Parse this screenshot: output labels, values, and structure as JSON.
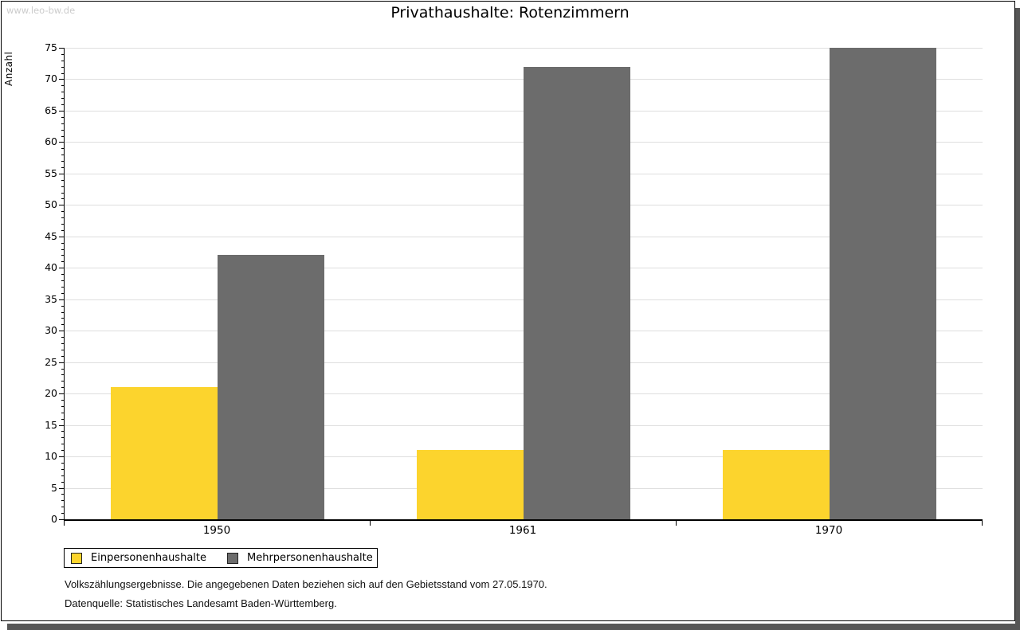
{
  "watermark": "www.leo-bw.de",
  "title": "Privathaushalte: Rotenzimmern",
  "footnotes": [
    "Volkszählungsergebnisse. Die angegebenen Daten beziehen sich auf den Gebietsstand vom 27.05.1970.",
    "Datenquelle: Statistisches Landesamt Baden-Württemberg."
  ],
  "colors": {
    "series_yellow": "#FCD42D",
    "series_gray": "#6C6C6C",
    "gridline": "#DEDEDE",
    "axis": "#000000",
    "frame_shadow": "#565656",
    "watermark": "#CCCCCC",
    "background": "#FFFFFF"
  },
  "chart_data": {
    "type": "bar",
    "title": "Privathaushalte: Rotenzimmern",
    "categories": [
      "1950",
      "1961",
      "1970"
    ],
    "series": [
      {
        "name": "Einpersonenhaushalte",
        "color": "#FCD42D",
        "values": [
          21,
          11,
          11
        ]
      },
      {
        "name": "Mehrpersonenhaushalte",
        "color": "#6C6C6C",
        "values": [
          42,
          72,
          75
        ]
      }
    ],
    "xlabel": "",
    "ylabel": "Anzahl",
    "ylim": [
      0,
      75
    ],
    "ytick_major": 5,
    "ytick_minor": 1,
    "grid": true,
    "legend_position": "bottom-left"
  }
}
